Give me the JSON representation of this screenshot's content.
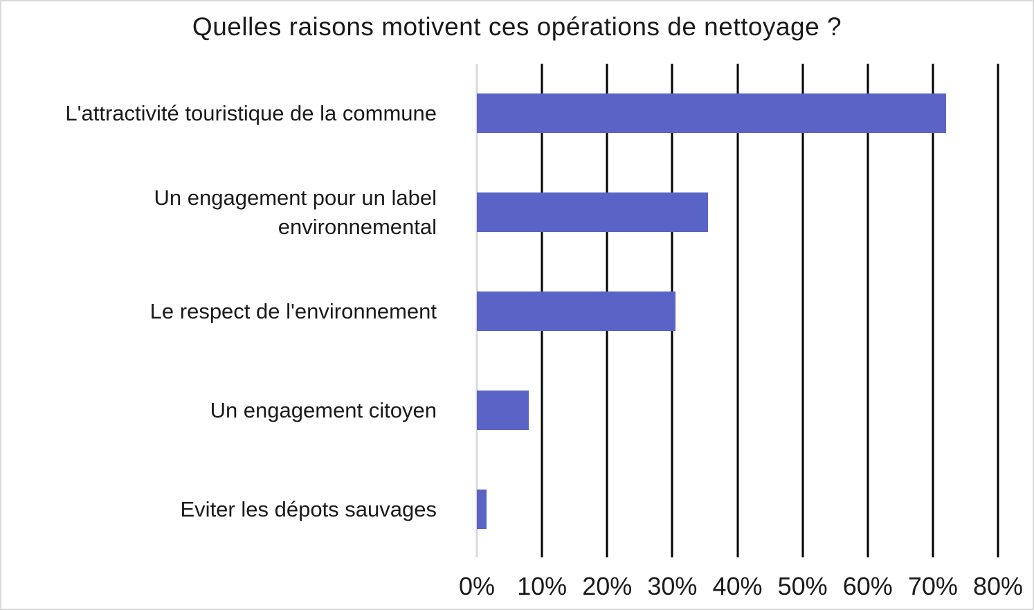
{
  "window": {
    "background": "#ffffff",
    "border_color": "#d9d9d9"
  },
  "chart_data": {
    "type": "bar",
    "orientation": "horizontal",
    "title": "Quelles raisons motivent ces opérations de nettoyage ?",
    "categories": [
      "L'attractivité touristique de la commune",
      "Un engagement pour un label environnemental",
      "Le respect de l'environnement",
      "Un engagement citoyen",
      "Eviter les dépots sauvages"
    ],
    "values": [
      72,
      35.5,
      30.5,
      8,
      1.5
    ],
    "unit": "%",
    "xlabel": "",
    "ylabel": "",
    "xlim": [
      0,
      80
    ],
    "x_tick_labels": [
      "0%",
      "10%",
      "20%",
      "30%",
      "40%",
      "50%",
      "60%",
      "70%",
      "80%"
    ],
    "grid": "vertical gridlines at 10% steps",
    "legend": "none",
    "colors": {
      "bar": "#5a64c6",
      "gridline": "#000000",
      "zero_axis_line": "#d9d9d9",
      "text": "#1a1a1a"
    }
  }
}
